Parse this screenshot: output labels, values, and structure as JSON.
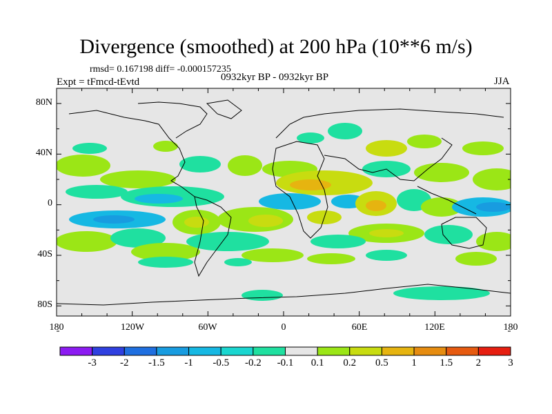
{
  "header": {
    "title": "Divergence (smoothed) at 200 hPa (10**6 m/s)",
    "stats": "rmsd= 0.167198 diff= -0.000157235",
    "experiment": "Expt = tFmcd-tEvtd",
    "period": "0932kyr BP - 0932kyr BP",
    "season": "JJA"
  },
  "map": {
    "lat_labels": [
      "80N",
      "40N",
      "0",
      "40S",
      "80S"
    ],
    "lon_labels": [
      "180",
      "120W",
      "60W",
      "0",
      "60E",
      "120E",
      "180"
    ],
    "background_color": "#e6e6e6"
  },
  "colorbar": {
    "labels": [
      "-3",
      "-2",
      "-1.5",
      "-1",
      "-0.5",
      "-0.2",
      "-0.1",
      "0.1",
      "0.2",
      "0.5",
      "1",
      "1.5",
      "2",
      "3"
    ],
    "colors": [
      "#8c1bf2",
      "#2f40e0",
      "#1f6fe0",
      "#189ce0",
      "#16b8e3",
      "#1ad6d0",
      "#1fe0a0",
      "#e6e6e6",
      "#9be616",
      "#c8dc10",
      "#e6b410",
      "#e68c10",
      "#e65a10",
      "#e61e10"
    ]
  }
}
